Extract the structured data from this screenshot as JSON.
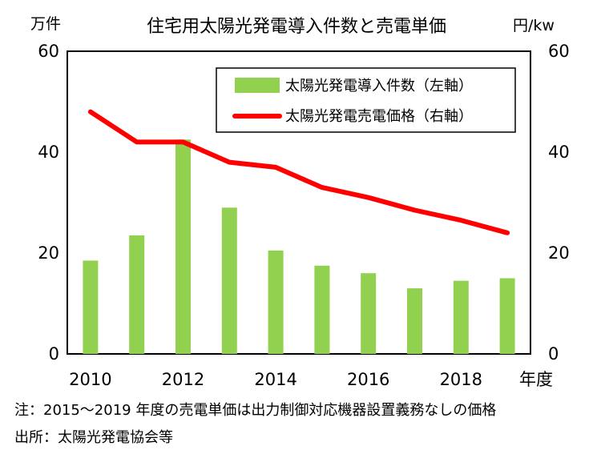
{
  "chart_data": {
    "type": "bar+line",
    "title": "住宅用太陽光発電導入件数と売電単価",
    "left_unit": "万件",
    "right_unit": "円/kw",
    "x_unit": "年度",
    "x": [
      2010,
      2011,
      2012,
      2013,
      2014,
      2015,
      2016,
      2017,
      2018,
      2019
    ],
    "x_tick_labels": [
      "2010",
      "2012",
      "2014",
      "2016",
      "2018"
    ],
    "ylim_left": [
      0,
      60
    ],
    "ylim_right": [
      0,
      60
    ],
    "y_ticks_left": [
      "0",
      "20",
      "40",
      "60"
    ],
    "y_ticks_right": [
      "0",
      "20",
      "40",
      "60"
    ],
    "series": [
      {
        "name": "太陽光発電導入件数（左軸）",
        "kind": "bar",
        "axis": "left",
        "color": "#92d050",
        "values": [
          18.5,
          23.5,
          42.5,
          29.0,
          20.5,
          17.5,
          16.0,
          13.0,
          14.5,
          15.0
        ]
      },
      {
        "name": "太陽光発電売電価格（右軸）",
        "kind": "line",
        "axis": "right",
        "color": "#ff0000",
        "values": [
          48,
          42,
          42,
          38,
          37,
          33,
          31,
          28.5,
          26.5,
          24
        ]
      }
    ]
  },
  "notes": {
    "note1": "注：2015～2019 年度の売電単価は出力制御対応機器設置義務なしの価格",
    "source": "出所：太陽光発電協会等"
  }
}
